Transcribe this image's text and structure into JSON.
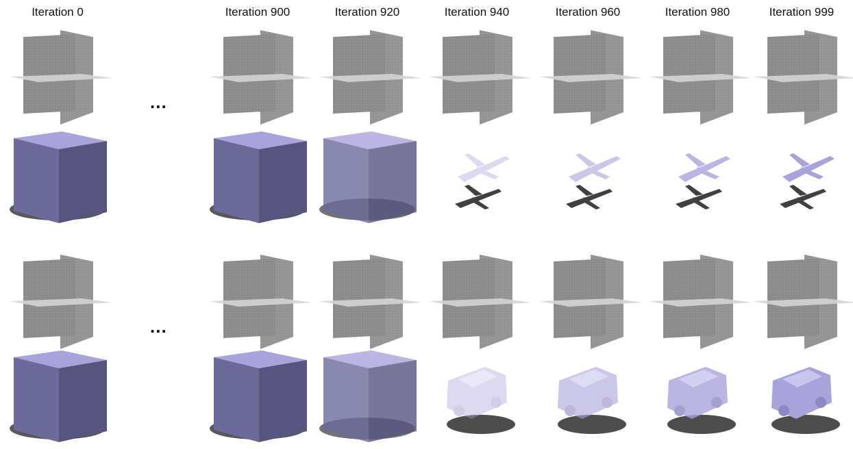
{
  "figure": {
    "columns": [
      {
        "label": "Iteration 0"
      },
      {
        "label": "Iteration 900"
      },
      {
        "label": "Iteration 920"
      },
      {
        "label": "Iteration 940"
      },
      {
        "label": "Iteration 960"
      },
      {
        "label": "Iteration 980"
      },
      {
        "label": "Iteration 999"
      }
    ],
    "ellipsis": "...",
    "rows": [
      {
        "kind": "planes",
        "example": "airplane"
      },
      {
        "kind": "render",
        "example": "airplane"
      },
      {
        "kind": "planes",
        "example": "car"
      },
      {
        "kind": "render",
        "example": "car"
      }
    ],
    "colors": {
      "shape": "#a9a3dc",
      "noise": "#6c6a9a",
      "plane": "#8a8a8a",
      "shadow": "#111111"
    }
  }
}
